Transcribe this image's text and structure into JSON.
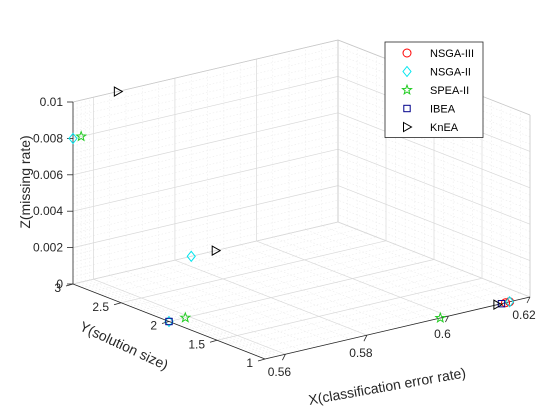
{
  "chart_data": {
    "type": "scatter",
    "projection": "3d",
    "title": "",
    "xlabel": "X(classification error rate)",
    "ylabel": "Y(solution size)",
    "zlabel": "Z(missing rate)",
    "xlim": [
      0.555,
      0.62
    ],
    "ylim": [
      1,
      3
    ],
    "zlim": [
      0,
      0.01
    ],
    "xticks": [
      "0.56",
      "0.58",
      "0.6",
      "0.62"
    ],
    "yticks": [
      "1",
      "1.5",
      "2",
      "2.5",
      "3"
    ],
    "zticks": [
      "0",
      "0.002",
      "0.004",
      "0.006",
      "0.008",
      "0.01"
    ],
    "grid": true,
    "legend_position": "top-right",
    "series": [
      {
        "name": "NSGA-III",
        "marker": "circle",
        "color": "#ff0000",
        "points": [
          {
            "x": 0.615,
            "y": 1,
            "z": 0
          },
          {
            "x": 0.614,
            "y": 1,
            "z": 0
          }
        ]
      },
      {
        "name": "NSGA-II",
        "marker": "diamond",
        "color": "#00e5ee",
        "points": [
          {
            "x": 0.615,
            "y": 1,
            "z": 0
          },
          {
            "x": 0.584,
            "y": 3,
            "z": 0
          },
          {
            "x": 0.555,
            "y": 2,
            "z": 0
          },
          {
            "x": 0.555,
            "y": 3,
            "z": 0.008
          }
        ]
      },
      {
        "name": "SPEA-II",
        "marker": "star",
        "color": "#22cc22",
        "points": [
          {
            "x": 0.598,
            "y": 1,
            "z": 0
          },
          {
            "x": 0.559,
            "y": 2,
            "z": 0
          },
          {
            "x": 0.557,
            "y": 3,
            "z": 0.008
          }
        ]
      },
      {
        "name": "IBEA",
        "marker": "square",
        "color": "#00008b",
        "points": [
          {
            "x": 0.613,
            "y": 1,
            "z": 0
          },
          {
            "x": 0.555,
            "y": 2,
            "z": 0
          }
        ]
      },
      {
        "name": "KnEA",
        "marker": "triangle-right",
        "color": "#000000",
        "points": [
          {
            "x": 0.612,
            "y": 1,
            "z": 0
          },
          {
            "x": 0.59,
            "y": 3,
            "z": 0
          },
          {
            "x": 0.566,
            "y": 3,
            "z": 0.01
          }
        ]
      }
    ]
  }
}
